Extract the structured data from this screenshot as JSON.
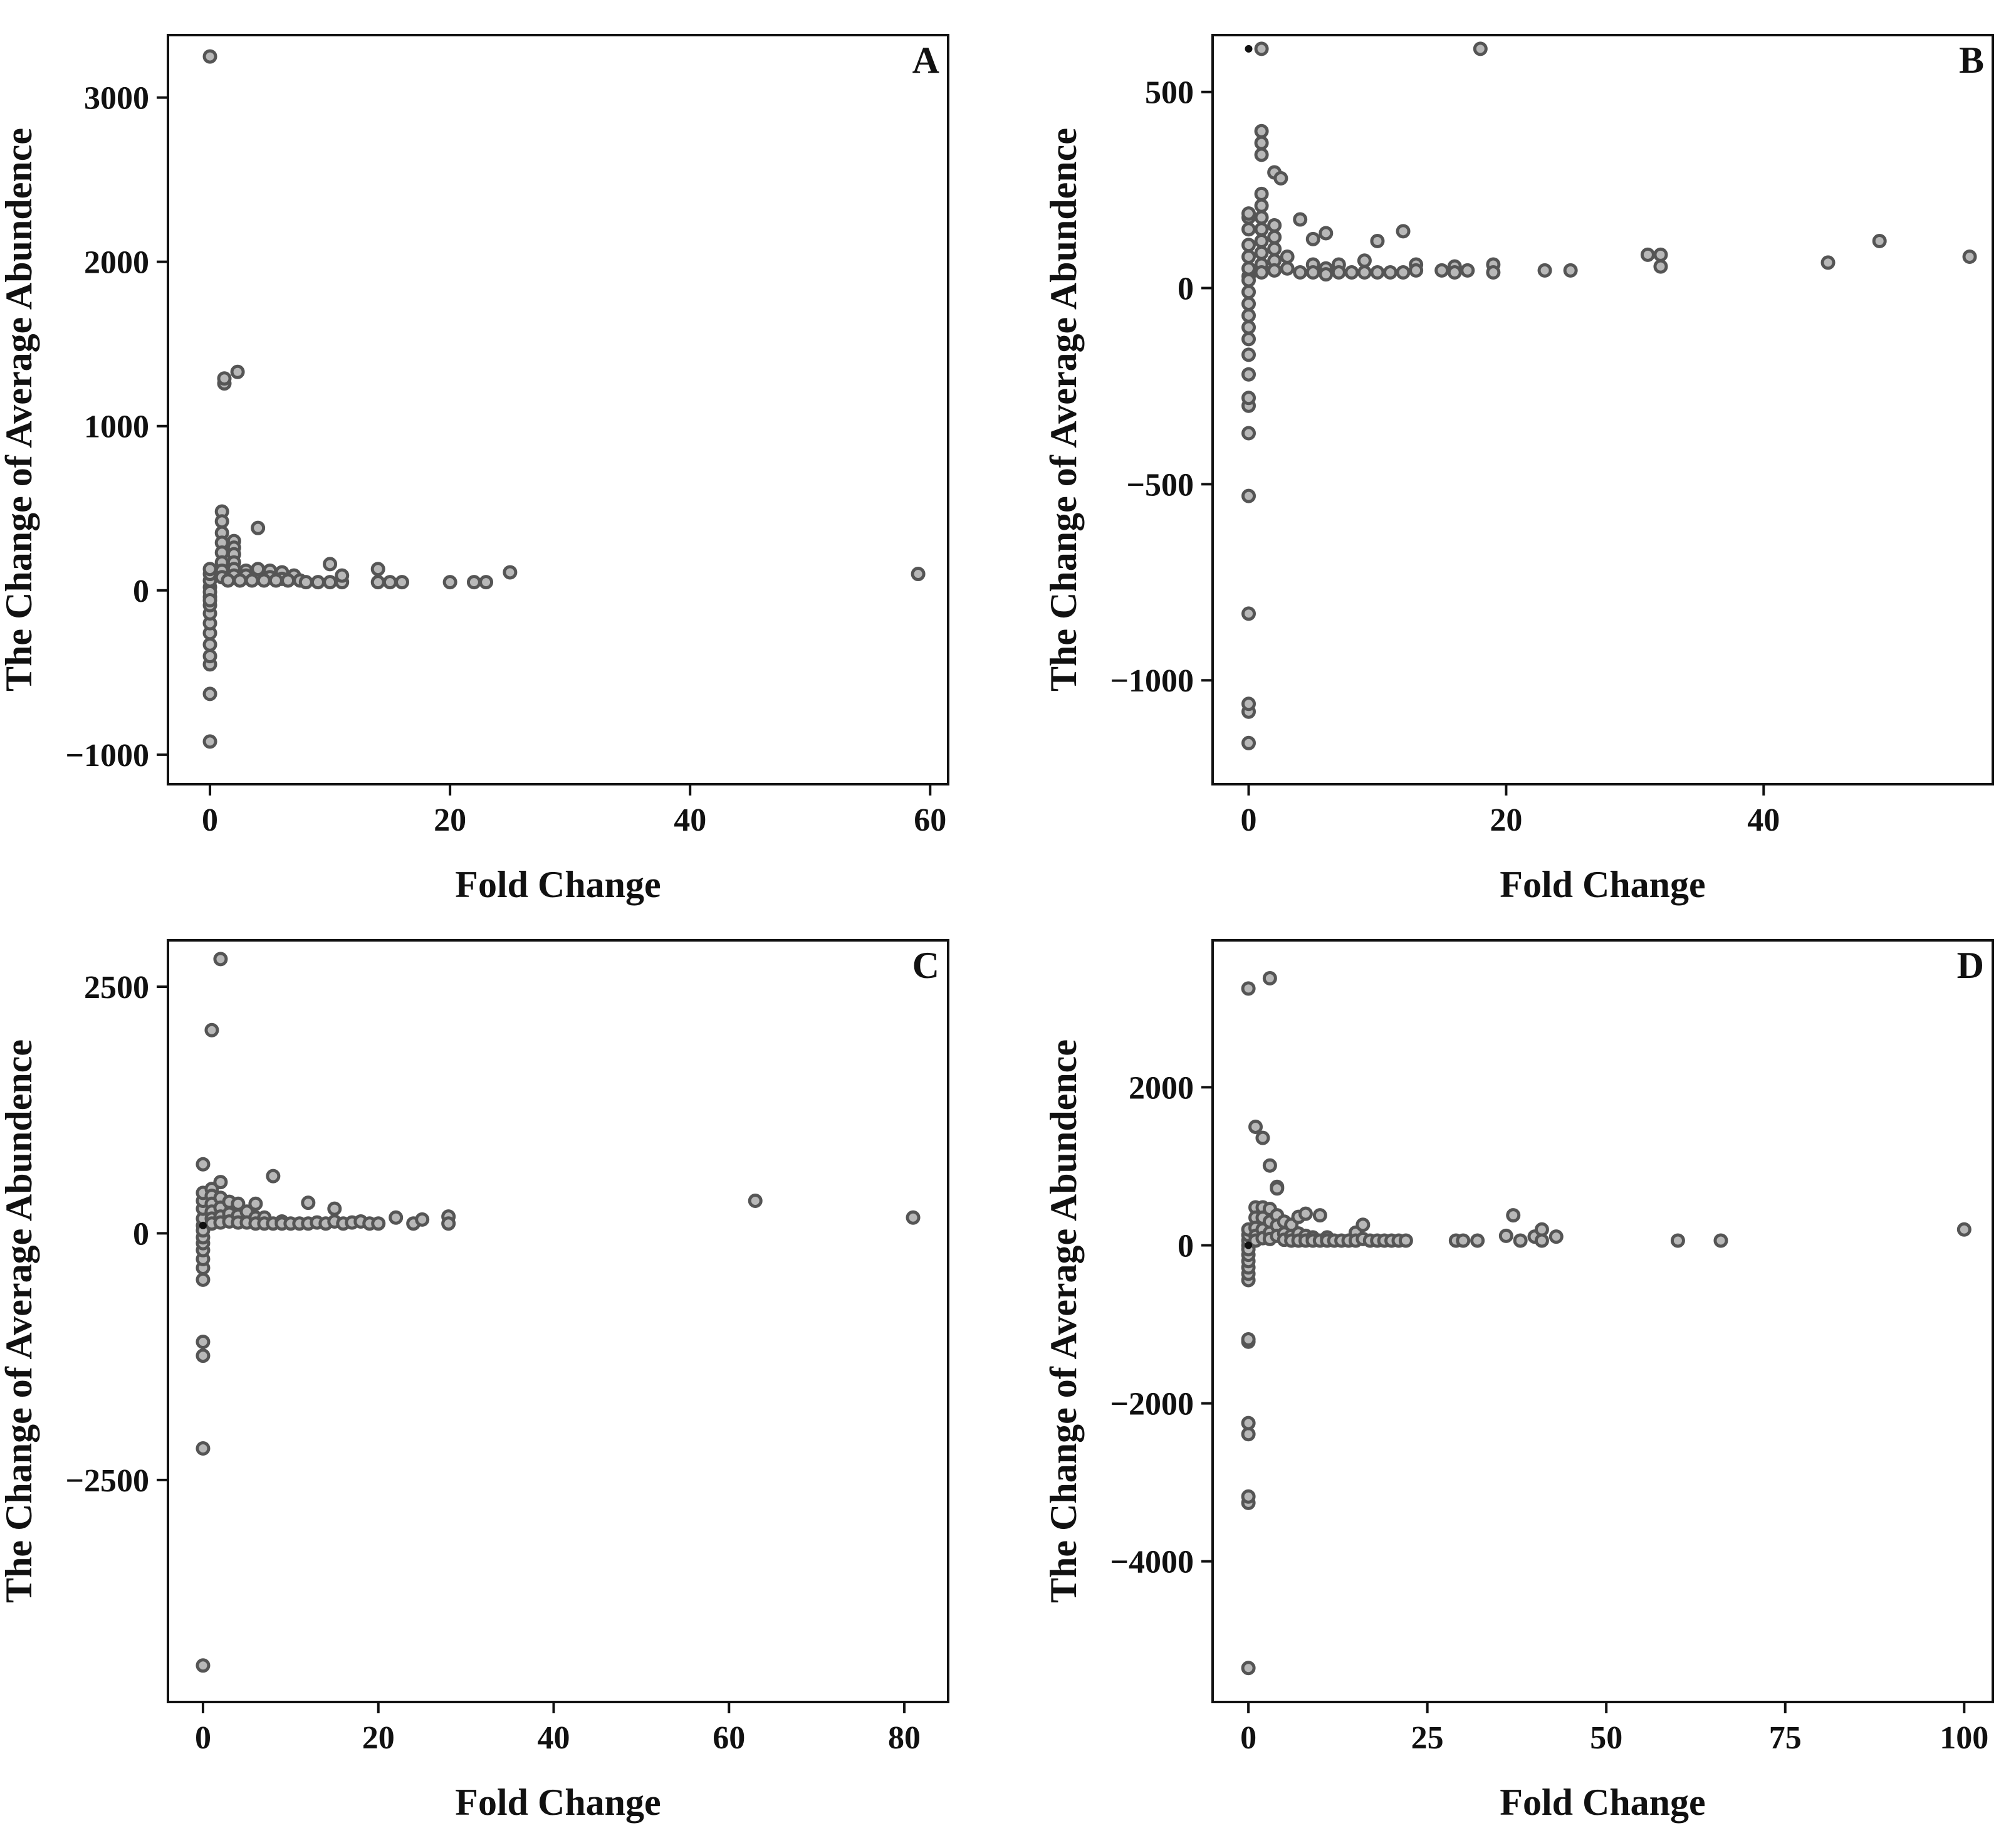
{
  "point_style": {
    "fill": "#b8b8b8",
    "stroke": "#555555",
    "center_fill": "#111111"
  },
  "chart_data": [
    {
      "type": "scatter",
      "panel": "A",
      "xlabel": "Fold Change",
      "ylabel": "The Change of Average Abundence",
      "xlim": [
        -3.5,
        61.5
      ],
      "ylim": [
        -1180,
        3380
      ],
      "xticks": [
        0,
        20,
        40,
        60
      ],
      "xtick_labels": [
        "0",
        "20",
        "40",
        "60"
      ],
      "yticks": [
        -1000,
        0,
        1000,
        2000,
        3000
      ],
      "ytick_labels": [
        "−1000",
        "0",
        "1000",
        "2000",
        "3000"
      ],
      "points": [
        [
          0,
          3250
        ],
        [
          1.2,
          1260
        ],
        [
          1.2,
          1290
        ],
        [
          2.3,
          1330
        ],
        [
          0,
          -920
        ],
        [
          0,
          -630
        ],
        [
          0,
          -450
        ],
        [
          0,
          -400
        ],
        [
          0,
          -330
        ],
        [
          0,
          -260
        ],
        [
          0,
          -200
        ],
        [
          0,
          -140
        ],
        [
          0,
          -90
        ],
        [
          0,
          -40
        ],
        [
          0,
          20
        ],
        [
          0,
          60
        ],
        [
          0,
          100
        ],
        [
          0,
          130
        ],
        [
          0,
          -10
        ],
        [
          0,
          -60
        ],
        [
          1,
          480
        ],
        [
          1,
          420
        ],
        [
          1,
          350
        ],
        [
          1,
          290
        ],
        [
          1,
          230
        ],
        [
          1,
          170
        ],
        [
          1,
          120
        ],
        [
          1,
          80
        ],
        [
          2,
          300
        ],
        [
          2,
          260
        ],
        [
          2,
          220
        ],
        [
          2,
          170
        ],
        [
          2,
          130
        ],
        [
          2,
          90
        ],
        [
          3,
          120
        ],
        [
          3,
          90
        ],
        [
          4,
          380
        ],
        [
          4,
          130
        ],
        [
          5,
          120
        ],
        [
          5,
          80
        ],
        [
          6,
          110
        ],
        [
          6,
          70
        ],
        [
          7,
          90
        ],
        [
          1.5,
          60
        ],
        [
          2.5,
          60
        ],
        [
          3.5,
          60
        ],
        [
          4.5,
          60
        ],
        [
          5.5,
          60
        ],
        [
          6.5,
          60
        ],
        [
          7.5,
          60
        ],
        [
          8,
          50
        ],
        [
          9,
          50
        ],
        [
          10,
          50
        ],
        [
          10,
          160
        ],
        [
          11,
          50
        ],
        [
          11,
          90
        ],
        [
          14,
          50
        ],
        [
          14,
          130
        ],
        [
          15,
          50
        ],
        [
          16,
          50
        ],
        [
          20,
          50
        ],
        [
          22,
          50
        ],
        [
          23,
          50
        ],
        [
          25,
          110
        ],
        [
          59,
          100
        ]
      ]
    },
    {
      "type": "scatter",
      "panel": "B",
      "xlabel": "Fold Change",
      "ylabel": "The Change of Average Abundence",
      "xlim": [
        -2.8,
        57.8
      ],
      "ylim": [
        -1265,
        645
      ],
      "xticks": [
        0,
        20,
        40
      ],
      "xtick_labels": [
        "0",
        "20",
        "40"
      ],
      "yticks": [
        -1000,
        -500,
        0,
        500
      ],
      "ytick_labels": [
        "−1000",
        "−500",
        "0",
        "500"
      ],
      "points": [
        [
          1,
          610
        ],
        [
          18,
          610
        ],
        [
          1,
          400
        ],
        [
          1,
          370
        ],
        [
          1,
          340
        ],
        [
          2,
          295
        ],
        [
          2.5,
          280
        ],
        [
          4,
          175
        ],
        [
          6,
          140
        ],
        [
          5,
          125
        ],
        [
          12,
          145
        ],
        [
          10,
          120
        ],
        [
          49,
          120
        ],
        [
          0,
          30
        ],
        [
          0,
          -1160
        ],
        [
          0,
          -1080
        ],
        [
          0,
          -1060
        ],
        [
          0,
          -830
        ],
        [
          0,
          -530
        ],
        [
          0,
          -370
        ],
        [
          0,
          -300
        ],
        [
          0,
          -280
        ],
        [
          0,
          -220
        ],
        [
          0,
          -170
        ],
        [
          0,
          -130
        ],
        [
          0,
          -100
        ],
        [
          0,
          -70
        ],
        [
          0,
          -40
        ],
        [
          0,
          -10
        ],
        [
          0,
          20
        ],
        [
          0,
          50
        ],
        [
          0,
          80
        ],
        [
          0,
          110
        ],
        [
          0,
          150
        ],
        [
          0,
          180
        ],
        [
          0,
          190
        ],
        [
          1,
          240
        ],
        [
          1,
          210
        ],
        [
          1,
          180
        ],
        [
          1,
          150
        ],
        [
          1,
          120
        ],
        [
          1,
          90
        ],
        [
          1,
          60
        ],
        [
          1,
          40
        ],
        [
          2,
          160
        ],
        [
          2,
          130
        ],
        [
          2,
          100
        ],
        [
          2,
          70
        ],
        [
          2,
          45
        ],
        [
          3,
          80
        ],
        [
          3,
          50
        ],
        [
          4,
          40
        ],
        [
          5,
          60
        ],
        [
          5,
          40
        ],
        [
          6,
          50
        ],
        [
          6,
          35
        ],
        [
          7,
          60
        ],
        [
          7,
          40
        ],
        [
          8,
          40
        ],
        [
          9,
          40
        ],
        [
          9,
          70
        ],
        [
          10,
          40
        ],
        [
          11,
          40
        ],
        [
          12,
          40
        ],
        [
          13,
          60
        ],
        [
          13,
          45
        ],
        [
          15,
          45
        ],
        [
          16,
          55
        ],
        [
          16,
          40
        ],
        [
          17,
          45
        ],
        [
          19,
          60
        ],
        [
          19,
          40
        ],
        [
          23,
          45
        ],
        [
          25,
          45
        ],
        [
          31,
          85
        ],
        [
          32,
          85
        ],
        [
          32,
          55
        ],
        [
          45,
          65
        ],
        [
          56,
          80
        ]
      ]
    },
    {
      "type": "scatter",
      "panel": "C",
      "xlabel": "Fold Change",
      "ylabel": "The Change of Average Abundence",
      "xlim": [
        -4,
        85
      ],
      "ylim": [
        -4750,
        2970
      ],
      "xticks": [
        0,
        20,
        40,
        60,
        80
      ],
      "xtick_labels": [
        "0",
        "20",
        "40",
        "60",
        "80"
      ],
      "yticks": [
        -2500,
        0,
        2500
      ],
      "ytick_labels": [
        "−2500",
        "0",
        "2500"
      ],
      "points": [
        [
          0,
          80
        ],
        [
          2,
          2780
        ],
        [
          1,
          2060
        ],
        [
          0,
          -4380
        ],
        [
          0,
          -2180
        ],
        [
          0,
          -1240
        ],
        [
          0,
          -1100
        ],
        [
          0,
          700
        ],
        [
          0,
          -470
        ],
        [
          0,
          -350
        ],
        [
          0,
          -260
        ],
        [
          0,
          -170
        ],
        [
          0,
          -100
        ],
        [
          0,
          -40
        ],
        [
          0,
          30
        ],
        [
          0,
          150
        ],
        [
          0,
          250
        ],
        [
          0,
          330
        ],
        [
          0,
          410
        ],
        [
          1,
          450
        ],
        [
          1,
          380
        ],
        [
          1,
          300
        ],
        [
          1,
          220
        ],
        [
          1,
          150
        ],
        [
          1,
          100
        ],
        [
          2,
          520
        ],
        [
          2,
          360
        ],
        [
          2,
          260
        ],
        [
          2,
          170
        ],
        [
          2,
          110
        ],
        [
          3,
          320
        ],
        [
          3,
          200
        ],
        [
          3,
          120
        ],
        [
          4,
          300
        ],
        [
          4,
          180
        ],
        [
          4,
          110
        ],
        [
          5,
          220
        ],
        [
          5,
          110
        ],
        [
          6,
          300
        ],
        [
          6,
          160
        ],
        [
          6,
          100
        ],
        [
          7,
          160
        ],
        [
          7,
          100
        ],
        [
          8,
          580
        ],
        [
          8,
          100
        ],
        [
          9,
          120
        ],
        [
          9,
          100
        ],
        [
          10,
          100
        ],
        [
          11,
          100
        ],
        [
          12,
          310
        ],
        [
          12,
          100
        ],
        [
          13,
          110
        ],
        [
          14,
          100
        ],
        [
          15,
          250
        ],
        [
          15,
          120
        ],
        [
          16,
          100
        ],
        [
          17,
          110
        ],
        [
          18,
          120
        ],
        [
          19,
          100
        ],
        [
          20,
          100
        ],
        [
          22,
          160
        ],
        [
          24,
          100
        ],
        [
          25,
          140
        ],
        [
          28,
          170
        ],
        [
          28,
          100
        ],
        [
          63,
          330
        ],
        [
          81,
          160
        ]
      ]
    },
    {
      "type": "scatter",
      "panel": "D",
      "xlabel": "Fold Change",
      "ylabel": "The Change of Average Abundence",
      "xlim": [
        -5,
        104
      ],
      "ylim": [
        -5780,
        3860
      ],
      "xticks": [
        0,
        25,
        50,
        75,
        100
      ],
      "xtick_labels": [
        "0",
        "25",
        "50",
        "75",
        "100"
      ],
      "yticks": [
        -4000,
        -2000,
        0,
        2000
      ],
      "ytick_labels": [
        "−4000",
        "−2000",
        "0",
        "2000"
      ],
      "points": [
        [
          0,
          0
        ],
        [
          0,
          3250
        ],
        [
          3,
          3380
        ],
        [
          1,
          1500
        ],
        [
          2,
          1360
        ],
        [
          3,
          1010
        ],
        [
          4,
          740
        ],
        [
          4,
          720
        ],
        [
          0,
          -5350
        ],
        [
          0,
          -3260
        ],
        [
          0,
          -3180
        ],
        [
          0,
          -2390
        ],
        [
          0,
          -2250
        ],
        [
          0,
          -1220
        ],
        [
          0,
          -1190
        ],
        [
          0,
          -440
        ],
        [
          0,
          -360
        ],
        [
          0,
          -280
        ],
        [
          0,
          -200
        ],
        [
          0,
          -120
        ],
        [
          0,
          -50
        ],
        [
          0,
          60
        ],
        [
          0,
          130
        ],
        [
          0,
          200
        ],
        [
          1,
          480
        ],
        [
          1,
          350
        ],
        [
          1,
          220
        ],
        [
          1,
          120
        ],
        [
          1,
          60
        ],
        [
          2,
          480
        ],
        [
          2,
          350
        ],
        [
          2,
          200
        ],
        [
          2,
          90
        ],
        [
          3,
          460
        ],
        [
          3,
          300
        ],
        [
          3,
          160
        ],
        [
          3,
          80
        ],
        [
          4,
          380
        ],
        [
          4,
          250
        ],
        [
          4,
          120
        ],
        [
          5,
          300
        ],
        [
          5,
          150
        ],
        [
          5,
          70
        ],
        [
          6,
          260
        ],
        [
          6,
          120
        ],
        [
          6,
          60
        ],
        [
          7,
          360
        ],
        [
          7,
          150
        ],
        [
          7,
          60
        ],
        [
          8,
          400
        ],
        [
          8,
          120
        ],
        [
          8,
          60
        ],
        [
          9,
          100
        ],
        [
          9,
          60
        ],
        [
          10,
          380
        ],
        [
          10,
          60
        ],
        [
          11,
          100
        ],
        [
          11,
          60
        ],
        [
          12,
          60
        ],
        [
          13,
          60
        ],
        [
          14,
          60
        ],
        [
          15,
          160
        ],
        [
          15,
          60
        ],
        [
          16,
          260
        ],
        [
          16,
          80
        ],
        [
          17,
          60
        ],
        [
          18,
          60
        ],
        [
          19,
          60
        ],
        [
          20,
          60
        ],
        [
          21,
          60
        ],
        [
          22,
          60
        ],
        [
          29,
          60
        ],
        [
          30,
          60
        ],
        [
          32,
          60
        ],
        [
          36,
          120
        ],
        [
          37,
          380
        ],
        [
          38,
          60
        ],
        [
          40,
          110
        ],
        [
          41,
          200
        ],
        [
          41,
          60
        ],
        [
          43,
          110
        ],
        [
          60,
          60
        ],
        [
          66,
          60
        ],
        [
          100,
          200
        ]
      ]
    }
  ]
}
